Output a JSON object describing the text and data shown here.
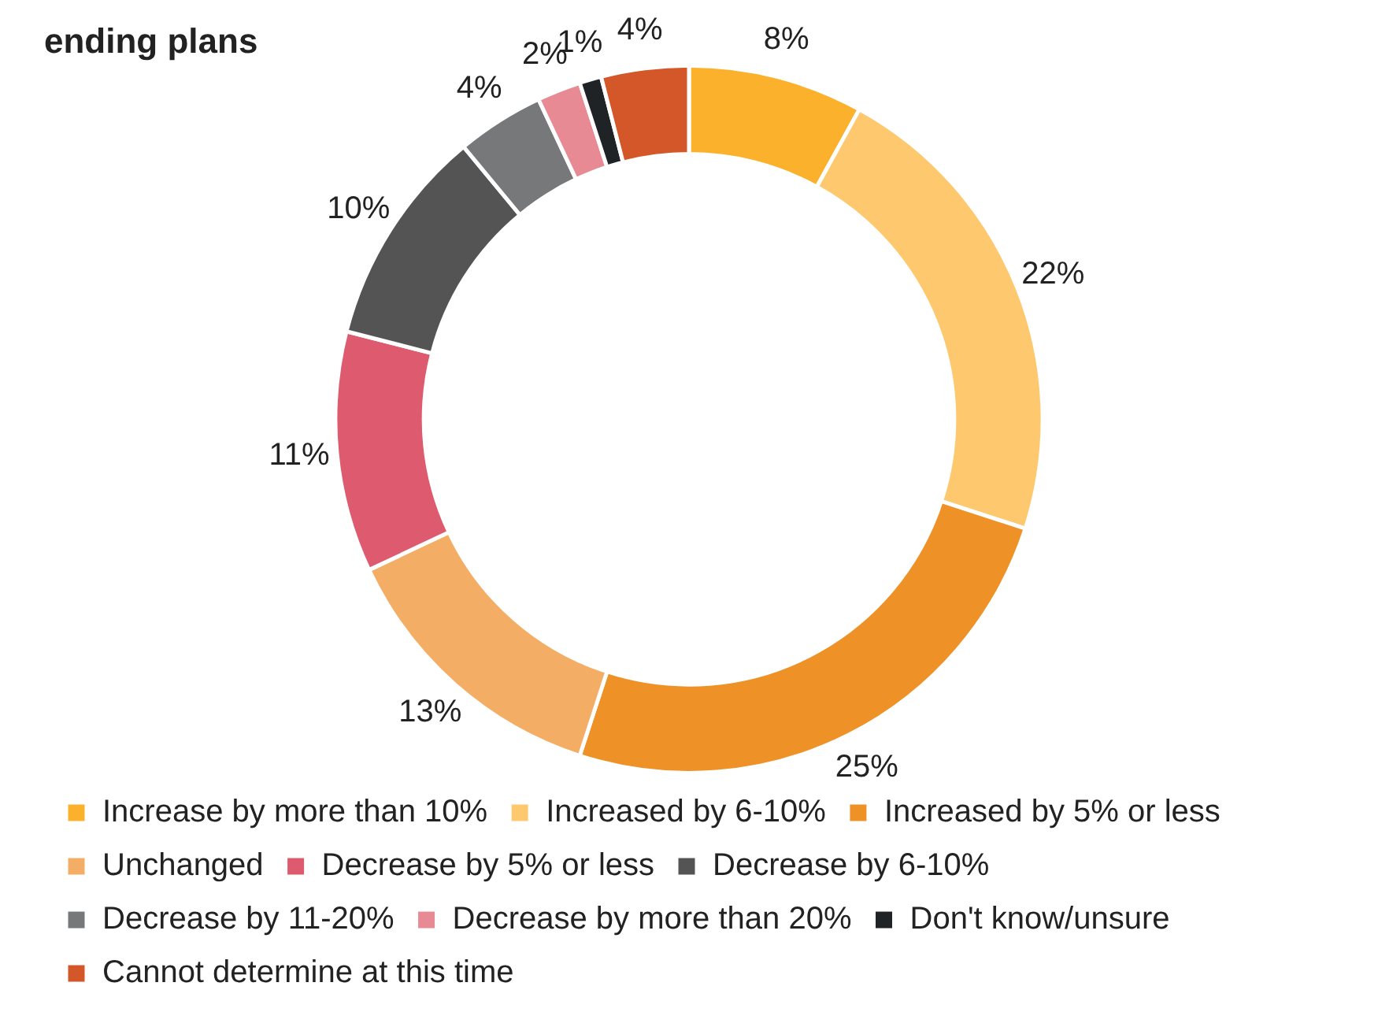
{
  "chart_data": {
    "type": "donut",
    "title": "ending plans",
    "categories": [
      "Increase by more than 10%",
      "Increased by 6-10%",
      "Increased by 5% or less",
      "Unchanged",
      "Decrease by 5% or less",
      "Decrease by 6-10%",
      "Decrease by 11-20%",
      "Decrease by more than 20%",
      "Don't know/unsure",
      "Cannot determine at this time"
    ],
    "values": [
      8,
      22,
      25,
      13,
      11,
      10,
      4,
      2,
      1,
      4
    ],
    "colors": [
      "#fbb12c",
      "#fec86f",
      "#ee9126",
      "#f4ad64",
      "#de5a6e",
      "#545454",
      "#76787a",
      "#e88a93",
      "#1f2326",
      "#d4572a"
    ],
    "value_labels": [
      "8%",
      "22%",
      "25%",
      "13%",
      "11%",
      "10%",
      "4%",
      "2%",
      "1%",
      "4%"
    ],
    "legend": "bottom"
  }
}
